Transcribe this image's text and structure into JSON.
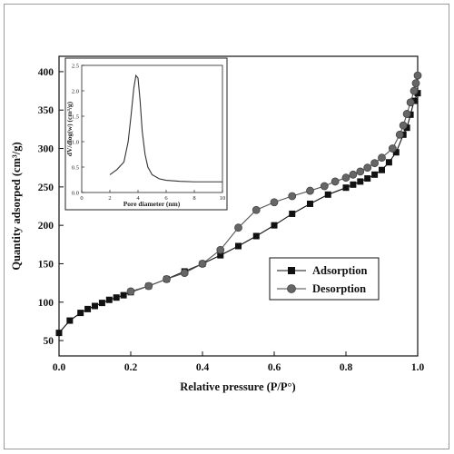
{
  "chart_data": [
    {
      "type": "line",
      "xlabel": "Relative pressure (P/P°)",
      "ylabel": "Quantity adsorped (cm³/g)",
      "xlim": [
        0,
        1.0
      ],
      "ylim": [
        30,
        420
      ],
      "xticks": [
        "0.0",
        "0.2",
        "0.4",
        "0.6",
        "0.8",
        "1.0"
      ],
      "yticks": [
        "50",
        "100",
        "150",
        "200",
        "250",
        "300",
        "350",
        "400"
      ],
      "legend_position": "center-right",
      "series": [
        {
          "name": "Adsorption",
          "marker": "square",
          "color": "#111111",
          "x": [
            0.0,
            0.03,
            0.06,
            0.08,
            0.1,
            0.12,
            0.14,
            0.16,
            0.18,
            0.2,
            0.25,
            0.3,
            0.35,
            0.4,
            0.45,
            0.5,
            0.55,
            0.6,
            0.65,
            0.7,
            0.75,
            0.8,
            0.82,
            0.84,
            0.86,
            0.88,
            0.9,
            0.92,
            0.94,
            0.96,
            0.97,
            0.98,
            0.99,
            1.0
          ],
          "y": [
            60,
            76,
            86,
            91,
            95,
            99,
            103,
            106,
            109,
            113,
            121,
            130,
            140,
            150,
            161,
            173,
            186,
            200,
            215,
            228,
            240,
            249,
            253,
            257,
            261,
            266,
            272,
            282,
            295,
            318,
            327,
            344,
            362,
            372
          ]
        },
        {
          "name": "Desorption",
          "marker": "circle",
          "color": "#555555",
          "x": [
            1.0,
            0.995,
            0.99,
            0.98,
            0.97,
            0.96,
            0.95,
            0.93,
            0.9,
            0.88,
            0.86,
            0.84,
            0.82,
            0.8,
            0.77,
            0.74,
            0.7,
            0.65,
            0.6,
            0.55,
            0.5,
            0.45,
            0.4,
            0.35,
            0.3,
            0.25,
            0.2
          ],
          "y": [
            395,
            385,
            375,
            360,
            345,
            330,
            318,
            300,
            288,
            281,
            275,
            270,
            266,
            262,
            257,
            251,
            245,
            238,
            230,
            220,
            197,
            168,
            150,
            138,
            130,
            121,
            114
          ]
        }
      ]
    },
    {
      "type": "line",
      "xlabel": "Pore diameter (nm)",
      "ylabel": "dV/dlog(w) (cm³/g)",
      "xlim": [
        0,
        10
      ],
      "ylim": [
        0,
        2.5
      ],
      "xticks": [
        "0",
        "2",
        "4",
        "6",
        "8",
        "10"
      ],
      "yticks": [
        "0.0",
        "0.5",
        "1.0",
        "1.5",
        "2.0",
        "2.5"
      ],
      "series": [
        {
          "color": "#333333",
          "x": [
            2.0,
            2.5,
            3.0,
            3.3,
            3.5,
            3.7,
            3.85,
            4.0,
            4.15,
            4.3,
            4.5,
            4.7,
            5.0,
            5.5,
            6.0,
            7.0,
            8.0,
            9.0,
            10.0
          ],
          "y": [
            0.35,
            0.45,
            0.6,
            1.0,
            1.5,
            2.05,
            2.3,
            2.25,
            1.8,
            1.2,
            0.75,
            0.5,
            0.35,
            0.27,
            0.24,
            0.22,
            0.21,
            0.21,
            0.21
          ]
        }
      ]
    }
  ],
  "legend": {
    "adsorption_label": "Adsorption",
    "desorption_label": "Desorption"
  }
}
